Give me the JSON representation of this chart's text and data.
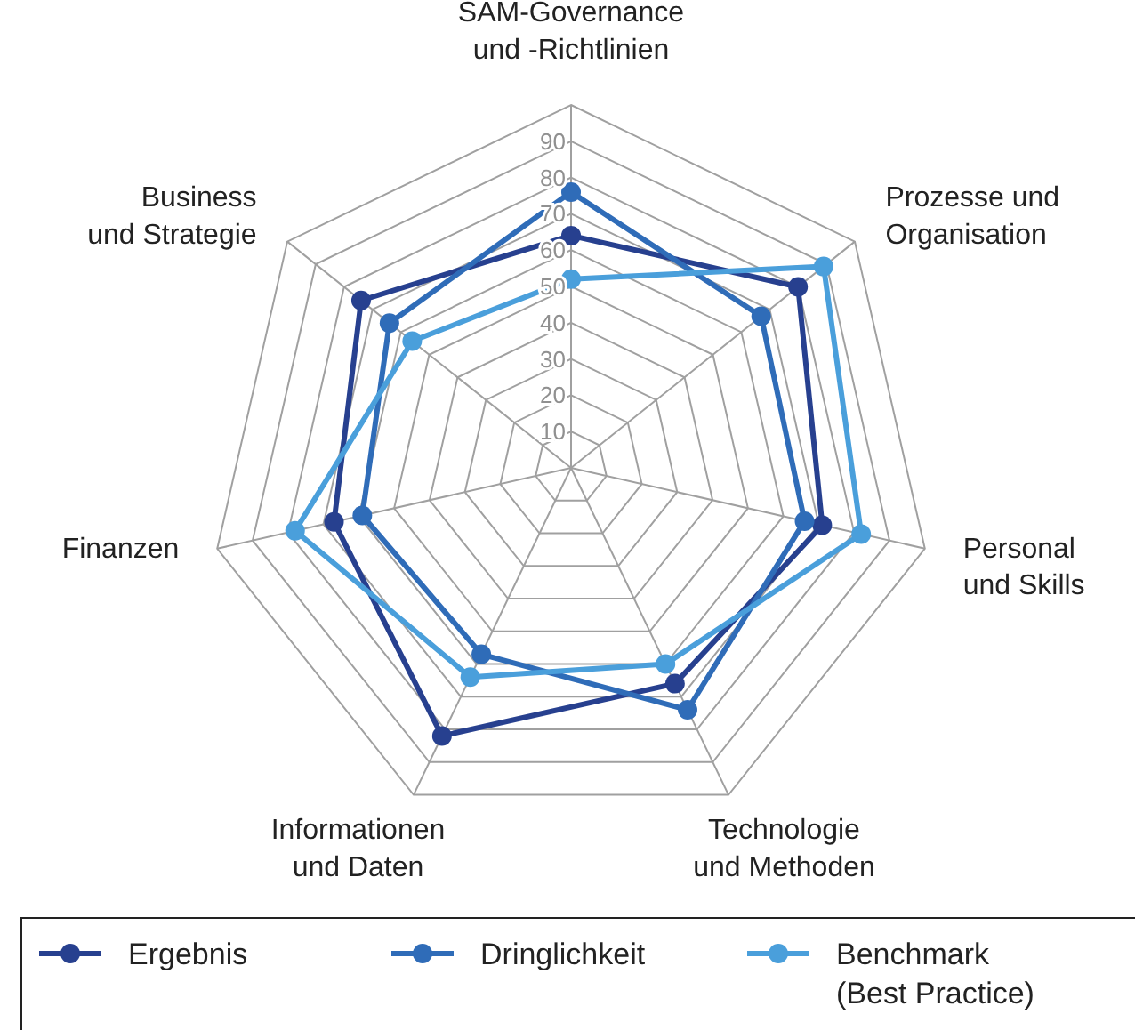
{
  "chart_data": {
    "type": "radar",
    "categories": [
      "SAM-Governance\nund -Richtlinien",
      "Prozesse und\nOrganisation",
      "Personal\nund Skills",
      "Technologie\nund Methoden",
      "Informationen\nund Daten",
      "Finanzen",
      "Business\nund Strategie"
    ],
    "series": [
      {
        "name": "Ergebnis",
        "color": "#27408f",
        "values": [
          64,
          80,
          71,
          66,
          82,
          67,
          74
        ]
      },
      {
        "name": "Dringlichkeit",
        "color": "#2f6cb8",
        "values": [
          76,
          67,
          66,
          74,
          57,
          59,
          64
        ]
      },
      {
        "name": "Benchmark\n(Best Practice)",
        "color": "#4a9fdb",
        "values": [
          52,
          89,
          82,
          60,
          64,
          78,
          56
        ]
      }
    ],
    "ylim": [
      0,
      100
    ],
    "yticks": [
      10,
      20,
      30,
      40,
      50,
      60,
      70,
      80,
      90
    ],
    "grid": true,
    "marker": "circle",
    "legend": "bottom"
  }
}
